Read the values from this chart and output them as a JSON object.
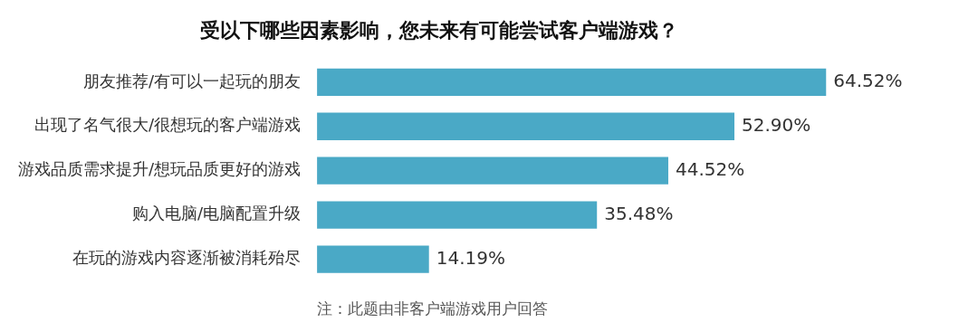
{
  "chart_data": {
    "type": "bar",
    "orientation": "horizontal",
    "title": "受以下哪些因素影响，您未来有可能尝试客户端游戏？",
    "categories": [
      "朋友推荐/有可以一起玩的朋友",
      "出现了名气很大/很想玩的客户端游戏",
      "游戏品质需求提升/想玩品质更好的游戏",
      "购入电脑/电脑配置升级",
      "在玩的游戏内容逐渐被消耗殆尽"
    ],
    "values": [
      64.52,
      52.9,
      44.52,
      35.48,
      14.19
    ],
    "value_labels": [
      "64.52%",
      "52.90%",
      "44.52%",
      "35.48%",
      "14.19%"
    ],
    "color": "#4aa9c6",
    "tick_labels": "y",
    "grid": false,
    "annotations": [
      "注：此题由非客户端游戏用户回答"
    ]
  }
}
